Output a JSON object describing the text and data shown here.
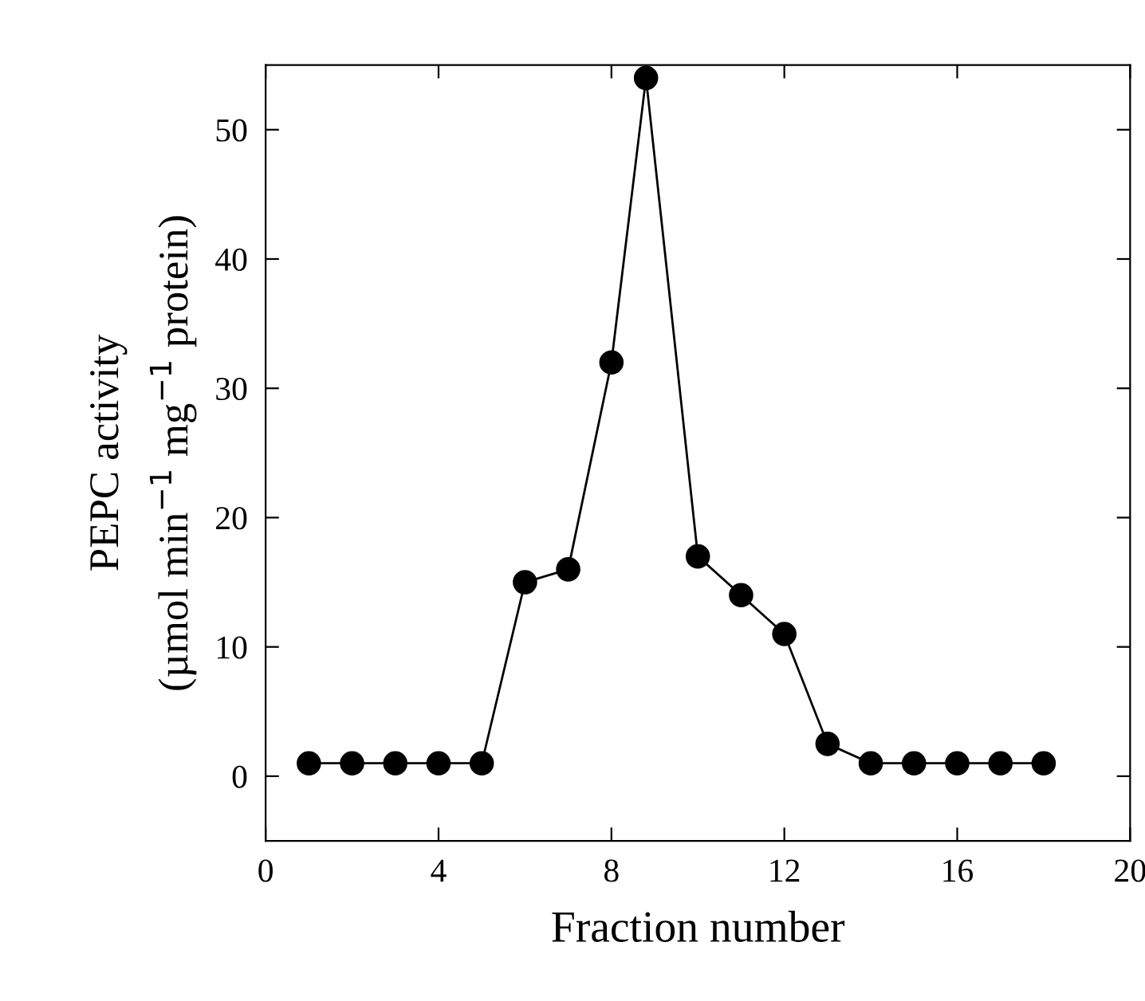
{
  "chart_data": {
    "type": "line",
    "xlabel": "Fraction number",
    "ylabel": "PEPC activity\n(µmol min$^{−1}$ mg$^{−1}$ protein)",
    "x": [
      1,
      2,
      3,
      4,
      5,
      6,
      7,
      8,
      8.8,
      10,
      11,
      12,
      13,
      14,
      15,
      16,
      17,
      18
    ],
    "series": [
      {
        "color": "#000000",
        "values": [
          1,
          1,
          1,
          1,
          1,
          15,
          16,
          32,
          54,
          17,
          14,
          11,
          2.5,
          1,
          1,
          1,
          1,
          1
        ]
      }
    ],
    "xlim": [
      0,
      20
    ],
    "xticks": [
      0,
      4,
      8,
      12,
      16,
      20
    ],
    "ylim": [
      -5,
      55
    ],
    "yticks": [
      0,
      10,
      20,
      30,
      40,
      50
    ],
    "marker": "circle",
    "line_style": "solid",
    "grid": false,
    "legend": false
  }
}
